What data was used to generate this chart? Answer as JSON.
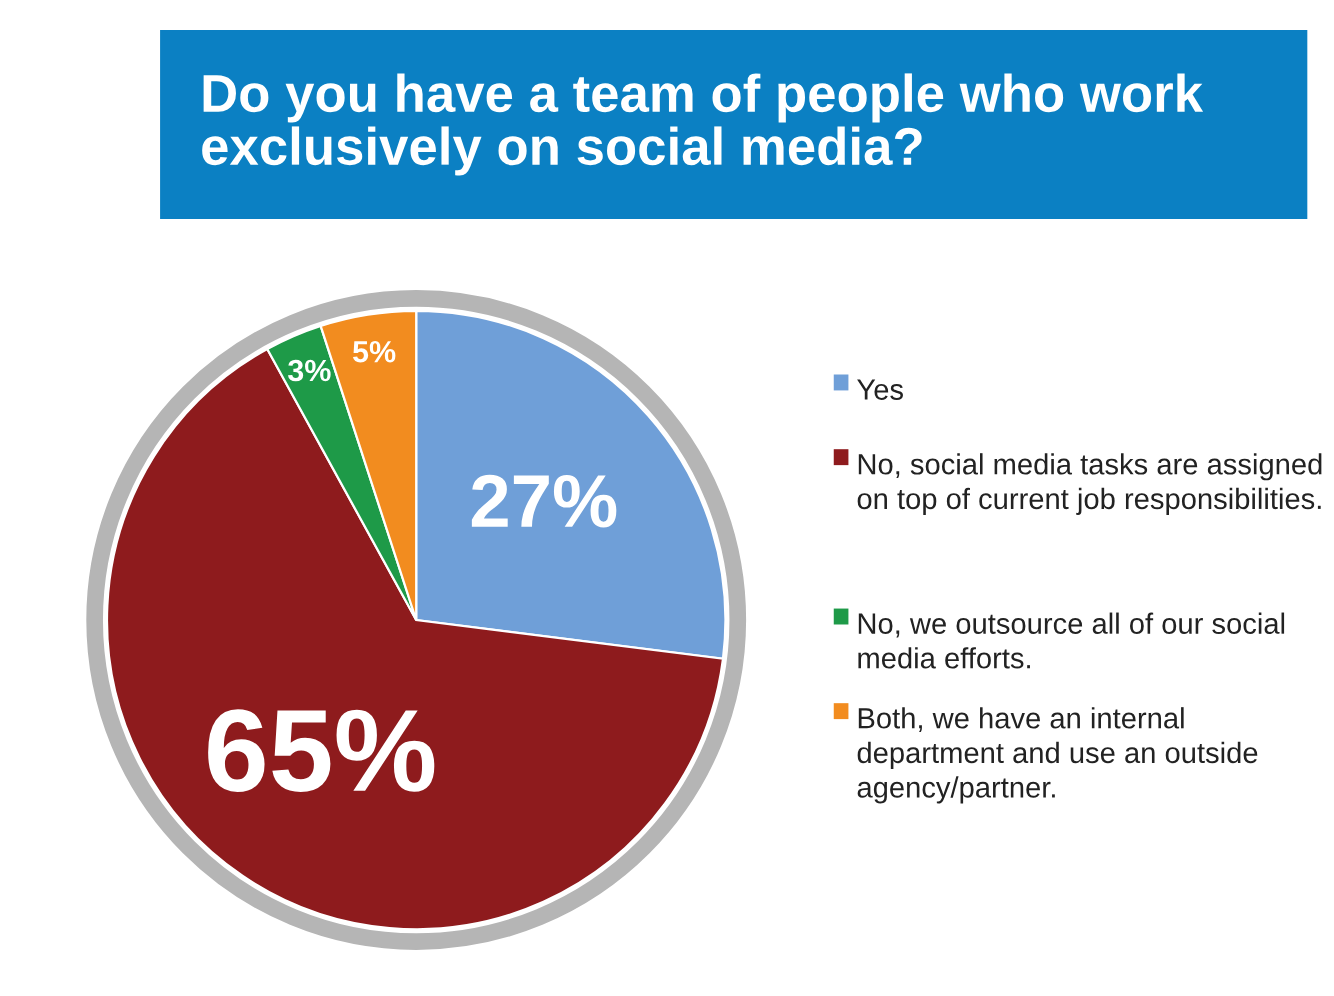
{
  "chart_data": {
    "type": "pie",
    "title": "Do you have a team of people who work exclusively on social media?",
    "categories": [
      "Yes",
      "No, social media tasks are assigned on top of current job responsibilities.",
      "No, we outsource all of our social media efforts.",
      "Both, we have an internal department and use an outside agency/partner."
    ],
    "values": [
      27,
      65,
      3,
      5
    ],
    "value_labels": [
      "27%",
      "65%",
      "3%",
      "5%"
    ],
    "colors": [
      "#6f9fd8",
      "#8e1b1d",
      "#1e9a48",
      "#f28c1f"
    ],
    "legend": "right"
  }
}
